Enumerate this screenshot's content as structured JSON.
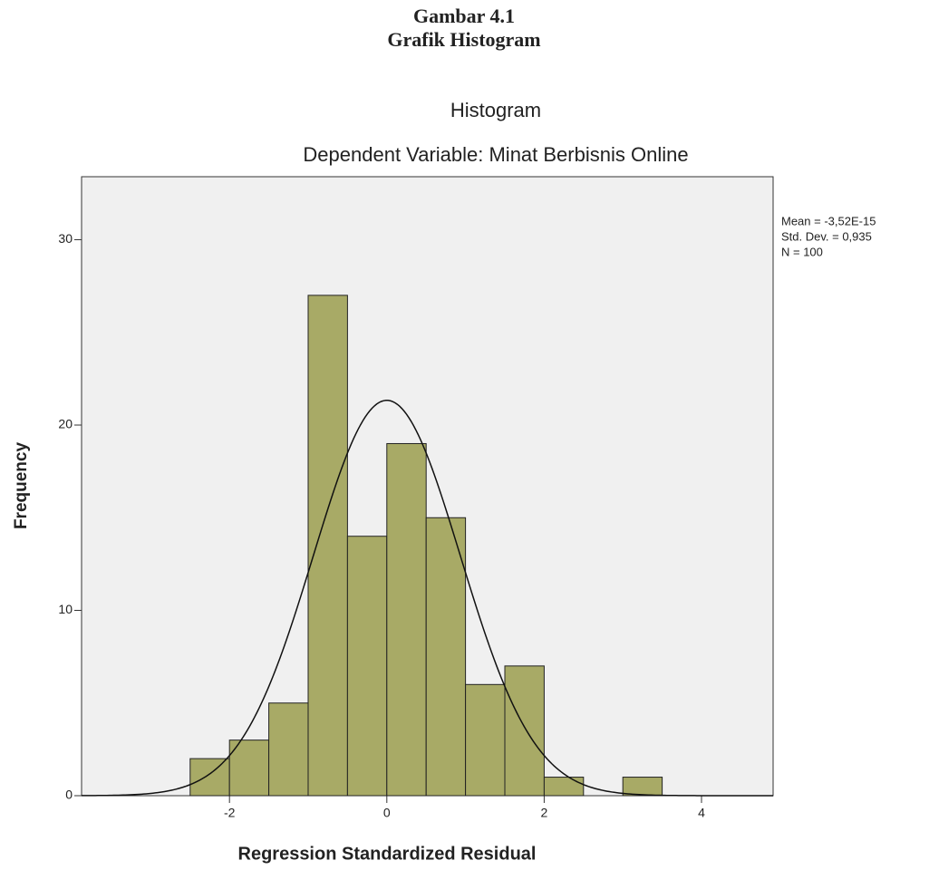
{
  "caption": {
    "number": "Gambar 4.1",
    "title": "Grafik Histogram"
  },
  "chart_data": {
    "type": "histogram",
    "title": "Histogram",
    "subtitle": "Dependent Variable: Minat Berbisnis Online",
    "x_label": "Regression Standardized Residual",
    "y_label": "Frequency",
    "bins": [
      -2.5,
      -2,
      -1.5,
      -1,
      -0.5,
      0,
      0.5,
      1,
      1.5,
      2,
      2.5,
      3,
      3.5
    ],
    "values": [
      2,
      3,
      5,
      27,
      14,
      19,
      15,
      6,
      7,
      1,
      0,
      1
    ],
    "color": "#a8aa66",
    "background": "#f0f0f0",
    "xlim": [
      -3.88,
      4.91
    ],
    "ylim": [
      0,
      33.4
    ],
    "xticks": [
      -2,
      0,
      2,
      4
    ],
    "yticks": [
      0,
      10,
      20,
      30
    ],
    "stats": {
      "mean": {
        "value": -3.52e-15,
        "label": "Mean = -3,52E-15"
      },
      "std_dev": {
        "value": 0.935,
        "label": "Std. Dev. = 0,935"
      },
      "n": {
        "value": 100,
        "label": "N = 100"
      }
    }
  }
}
